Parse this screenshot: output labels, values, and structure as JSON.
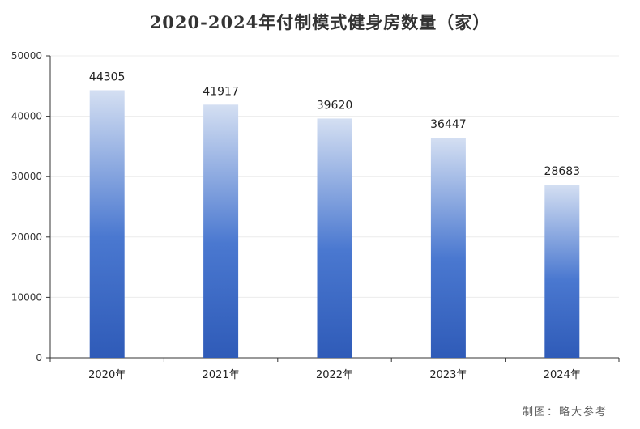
{
  "chart_data": {
    "type": "bar",
    "title": "2020-2024年付制模式健身房数量（家）",
    "categories": [
      "2020年",
      "2021年",
      "2022年",
      "2023年",
      "2024年"
    ],
    "values": [
      44305,
      41917,
      39620,
      36447,
      28683
    ],
    "ylim": [
      0,
      50000
    ],
    "yticks": [
      0,
      10000,
      20000,
      30000,
      40000,
      50000
    ],
    "grid": true,
    "legend": "none",
    "bar_gradient": {
      "top": "#d4dff2",
      "mid": "#4a78d0",
      "bottom": "#2f5bb8"
    }
  },
  "source": "制图：略大参考"
}
